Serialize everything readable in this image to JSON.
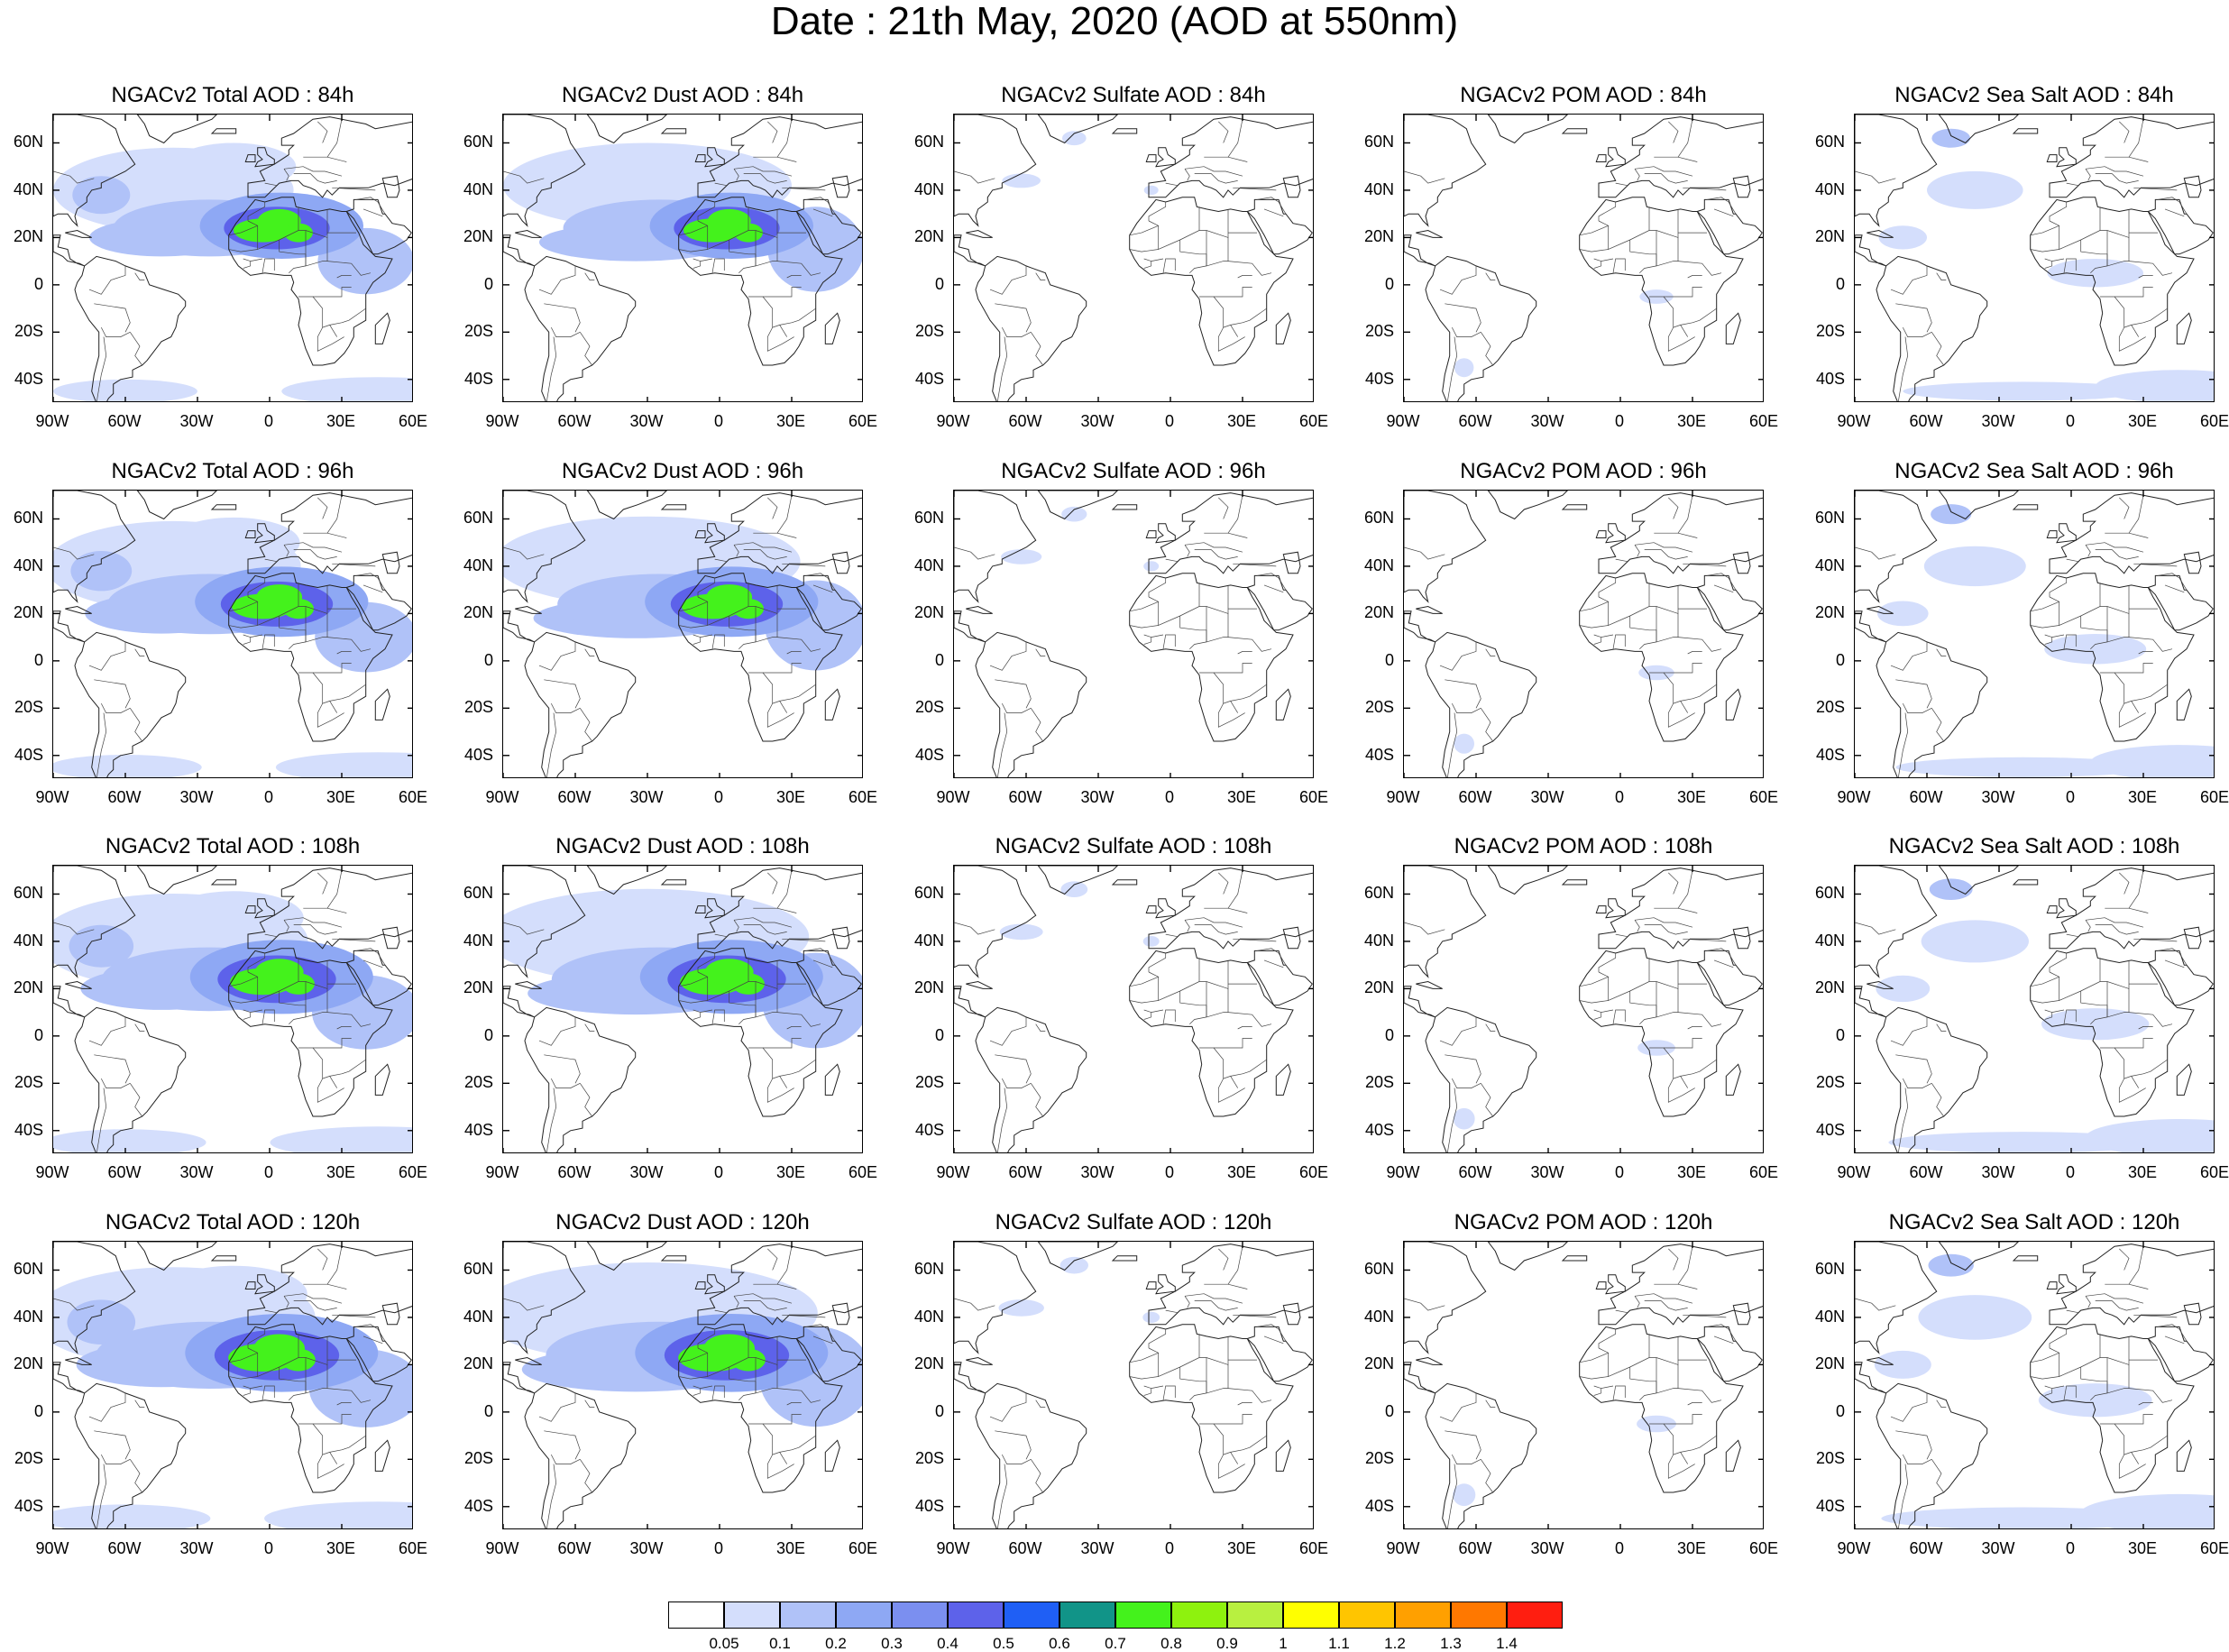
{
  "title": "Date : 21th May, 2020 (AOD at 550nm)",
  "axes": {
    "lat_labels": [
      "60N",
      "40N",
      "20N",
      "0",
      "20S",
      "40S"
    ],
    "lat_values": [
      60,
      40,
      20,
      0,
      -20,
      -40
    ],
    "lon_labels": [
      "90W",
      "60W",
      "30W",
      "0",
      "30E",
      "60E"
    ],
    "lon_values": [
      -90,
      -60,
      -30,
      0,
      30,
      60
    ],
    "lat_range": [
      -50,
      72
    ],
    "lon_range": [
      -90,
      60
    ]
  },
  "panel_titles": [
    [
      "NGACv2 Total AOD : 84h",
      "NGACv2 Dust AOD : 84h",
      "NGACv2 Sulfate AOD : 84h",
      "NGACv2 POM AOD : 84h",
      "NGACv2 Sea Salt AOD : 84h"
    ],
    [
      "NGACv2 Total AOD : 96h",
      "NGACv2 Dust AOD : 96h",
      "NGACv2 Sulfate AOD : 96h",
      "NGACv2 POM AOD : 96h",
      "NGACv2 Sea Salt AOD : 96h"
    ],
    [
      "NGACv2 Total AOD : 108h",
      "NGACv2 Dust AOD : 108h",
      "NGACv2 Sulfate AOD : 108h",
      "NGACv2 POM AOD : 108h",
      "NGACv2 Sea Salt AOD : 108h"
    ],
    [
      "NGACv2 Total AOD : 120h",
      "NGACv2 Dust AOD : 120h",
      "NGACv2 Sulfate AOD : 120h",
      "NGACv2 POM AOD : 120h",
      "NGACv2 Sea Salt  AOD : 120h"
    ]
  ],
  "colorbar": {
    "colors": [
      "#ffffff",
      "#d4defc",
      "#b0c2f8",
      "#8ea8f4",
      "#7b8ff0",
      "#5d62ea",
      "#1f5ff5",
      "#119488",
      "#44f21c",
      "#8ef20e",
      "#b8f040",
      "#ffff00",
      "#ffc500",
      "#ffa000",
      "#ff7800",
      "#ff1e10"
    ],
    "labels": [
      "0.05",
      "0.1",
      "0.2",
      "0.3",
      "0.4",
      "0.5",
      "0.6",
      "0.7",
      "0.8",
      "0.9",
      "1",
      "1.1",
      "1.2",
      "1.3",
      "1.4"
    ]
  }
}
